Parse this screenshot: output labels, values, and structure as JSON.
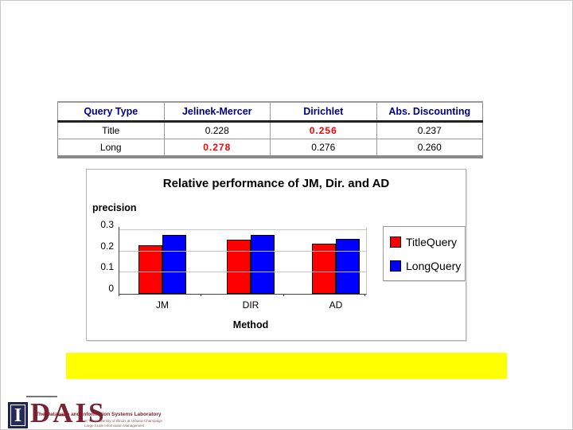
{
  "table": {
    "headers": [
      "Query Type",
      "Jelinek-Mercer",
      "Dirichlet",
      "Abs. Discounting"
    ],
    "header_color": "#000080",
    "highlight_color": "#FF0000",
    "rows": [
      {
        "cells": [
          "Title",
          "0.228",
          "0.256",
          "0.237"
        ]
      },
      {
        "cells": [
          "Long",
          "0.278",
          "0.276",
          "0.260"
        ]
      }
    ]
  },
  "chart_data": {
    "type": "bar",
    "title": "Relative performance of JM, Dir. and AD",
    "ylabel": "precision",
    "xlabel": "Method",
    "categories": [
      "JM",
      "DIR",
      "AD"
    ],
    "series": [
      {
        "name": "TitleQuery",
        "color": "#FF0000",
        "values": [
          0.228,
          0.256,
          0.237
        ]
      },
      {
        "name": "LongQuery",
        "color": "#0000FF",
        "values": [
          0.278,
          0.276,
          0.26
        ]
      }
    ],
    "yticks": [
      0,
      0.1,
      0.2,
      0.3
    ],
    "ylim": [
      0,
      0.315
    ],
    "grid": true,
    "legend_position": "right"
  },
  "highlight_bar": {
    "color": "#FFFF00",
    "text": ""
  },
  "logo": {
    "letter": "I",
    "acronym": "DAIS",
    "line1": "The Database and Information Systems Laboratory",
    "line2": "at The University of Illinois at Urbana-Champaign",
    "line3": "Large Scale Information Management"
  }
}
